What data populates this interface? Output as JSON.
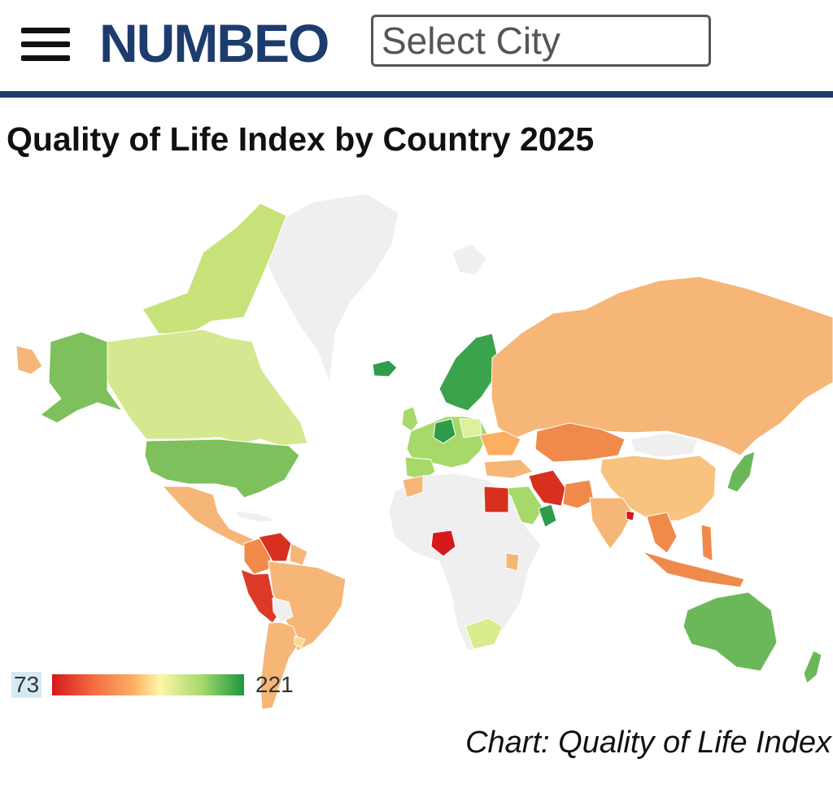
{
  "header": {
    "menu_icon": "hamburger-menu-icon",
    "logo_text": "NUMBEO",
    "city_search_placeholder": "Select City",
    "accent_color": "#1d3c6e"
  },
  "page_title": "Quality of Life Index by Country 2025",
  "map": {
    "type": "choropleth",
    "no_data_color": "#efefef",
    "color_scale": {
      "min_label": "73",
      "max_label": "221",
      "min": 73,
      "max": 221,
      "colors": [
        "#d7191c",
        "#f46d43",
        "#fdae61",
        "#fff6a8",
        "#a6d96a",
        "#1a9641"
      ]
    }
  },
  "caption": "Chart: Quality of Life Index"
}
